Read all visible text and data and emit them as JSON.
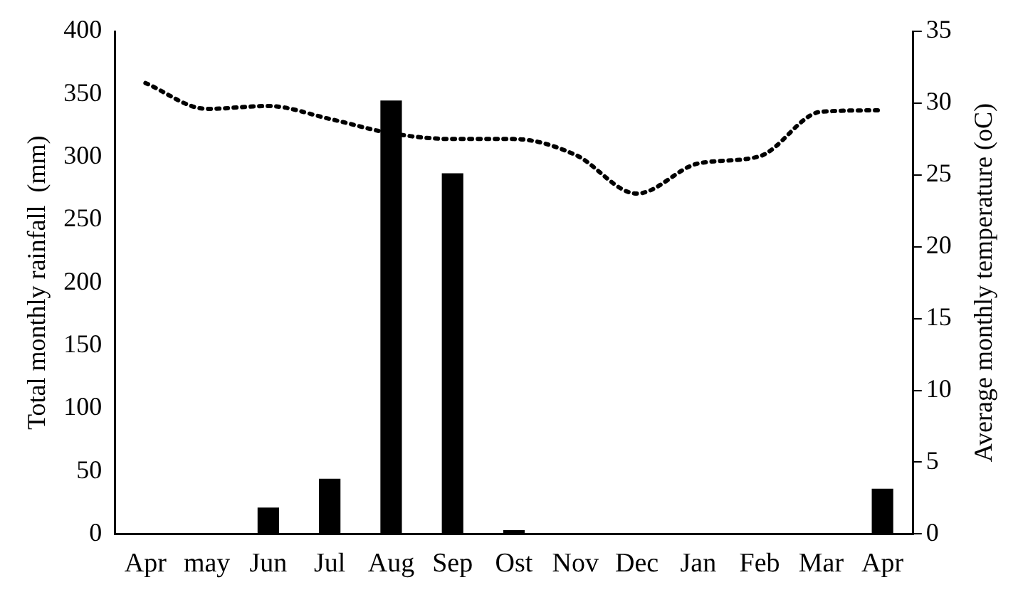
{
  "chart_data": {
    "type": "bar",
    "categories": [
      "Apr",
      "may",
      "Jun",
      "Jul",
      "Aug",
      "Sep",
      "Ost",
      "Nov",
      "Dec",
      "Jan",
      "Feb",
      "Mar",
      "Apr"
    ],
    "ylabel": "Total monthly rainfall  (mm)",
    "y2label": "Average monthly temperature (oC)",
    "series": [
      {
        "color": "#000000",
        "values": [
          0,
          0,
          21,
          44,
          345,
          287,
          3,
          0,
          0,
          0,
          0,
          0,
          36
        ]
      },
      {
        "type": "line",
        "axis": "y2",
        "color": "#000000",
        "line_style": "dotted",
        "marker": "none",
        "values": [
          31.4,
          29.6,
          29.8,
          28.9,
          27.9,
          27.5,
          27.5,
          26.4,
          23.7,
          25.8,
          26.3,
          29.4,
          29.5
        ]
      }
    ],
    "ylim": [
      0,
      400
    ],
    "yticks": [
      0,
      50,
      100,
      150,
      200,
      250,
      300,
      350,
      400
    ],
    "y2lim": [
      0,
      35
    ],
    "y2ticks": [
      0,
      5,
      10,
      15,
      20,
      25,
      30,
      35
    ],
    "grid": false,
    "legend": false
  }
}
